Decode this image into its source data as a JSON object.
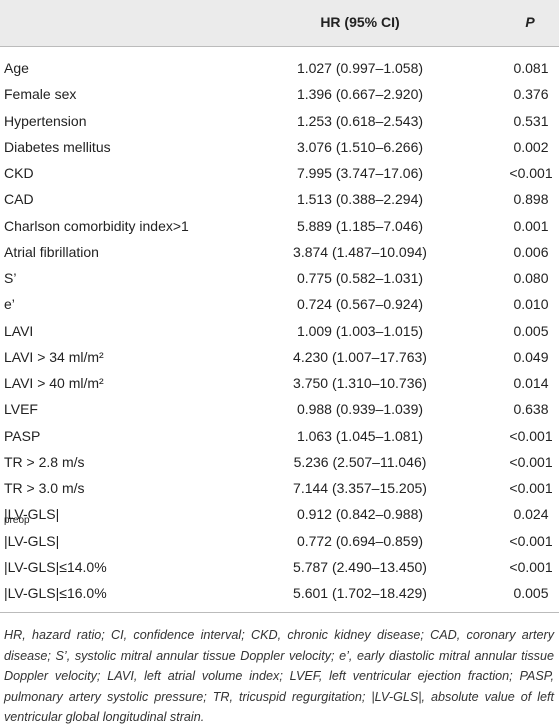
{
  "table": {
    "header": [
      "",
      "HR (95% CI)",
      "P"
    ],
    "rows": [
      {
        "label": "Age",
        "hr": "1.027 (0.997–1.058)",
        "p": "0.081"
      },
      {
        "label": "Female sex",
        "hr": "1.396 (0.667–2.920)",
        "p": "0.376"
      },
      {
        "label": "Hypertension",
        "hr": "1.253 (0.618–2.543)",
        "p": "0.531"
      },
      {
        "label": "Diabetes mellitus",
        "hr": "3.076 (1.510–6.266)",
        "p": "0.002"
      },
      {
        "label": "CKD",
        "hr": "7.995 (3.747–17.06)",
        "p": "<0.001"
      },
      {
        "label": "CAD",
        "hr": "1.513 (0.388–2.294)",
        "p": "0.898"
      },
      {
        "label": "Charlson comorbidity index>1",
        "hr": "5.889 (1.185–7.046)",
        "p": "0.001"
      },
      {
        "label": "Atrial fibrillation",
        "hr": "3.874 (1.487–10.094)",
        "p": "0.006"
      },
      {
        "label": "S’",
        "hr": "0.775 (0.582–1.031)",
        "p": "0.080"
      },
      {
        "label": "e’",
        "hr": "0.724 (0.567–0.924)",
        "p": "0.010"
      },
      {
        "label": "LAVI",
        "hr": "1.009 (1.003–1.015)",
        "p": "0.005"
      },
      {
        "label": "LAVI > 34 ml/m²",
        "hr": "4.230 (1.007–17.763)",
        "p": "0.049"
      },
      {
        "label": "LAVI > 40 ml/m²",
        "hr": "3.750 (1.310–10.736)",
        "p": "0.014"
      },
      {
        "label": "LVEF",
        "hr": "0.988 (0.939–1.039)",
        "p": "0.638"
      },
      {
        "label": "PASP",
        "hr": "1.063 (1.045–1.081)",
        "p": "<0.001"
      },
      {
        "label": "TR > 2.8 m/s",
        "hr": "5.236 (2.507–11.046)",
        "p": "<0.001"
      },
      {
        "label": "TR > 3.0 m/s",
        "hr": "7.144 (3.357–15.205)",
        "p": "<0.001"
      },
      {
        "label": "|LV-GLS|",
        "label_sub": "preop",
        "hr": "0.912 (0.842–0.988)",
        "p": "0.024"
      },
      {
        "label": "|LV-GLS|",
        "hr": "0.772 (0.694–0.859)",
        "p": "<0.001"
      },
      {
        "label": "|LV-GLS|≤14.0%",
        "hr": "5.787 (2.490–13.450)",
        "p": "<0.001"
      },
      {
        "label": "|LV-GLS|≤16.0%",
        "hr": "5.601 (1.702–18.429)",
        "p": "0.005"
      }
    ],
    "footnote": "HR, hazard ratio; CI, confidence interval; CKD, chronic kidney disease; CAD, coronary artery disease; S’, systolic mitral annular tissue Doppler velocity; e’, early diastolic mitral annular tissue Doppler velocity; LAVI, left atrial volume index; LVEF, left ventricular ejection fraction; PASP, pulmonary artery systolic pressure; TR, tricuspid regurgitation; |LV-GLS|, absolute value of left ventricular global longitudinal strain."
  }
}
